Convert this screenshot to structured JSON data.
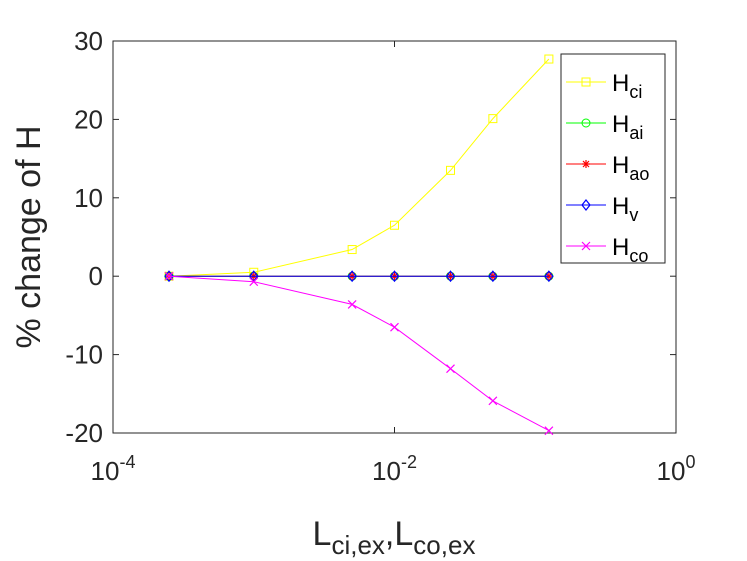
{
  "chart_data": {
    "type": "line",
    "xscale": "log",
    "xlim": [
      0.0001,
      1
    ],
    "ylim": [
      -20,
      30
    ],
    "xticks": [
      {
        "value": 0.0001,
        "base": "10",
        "exp": "-4"
      },
      {
        "value": 0.01,
        "base": "10",
        "exp": "-2"
      },
      {
        "value": 1,
        "base": "10",
        "exp": "0"
      }
    ],
    "yticks": [
      {
        "value": 30,
        "label": "30"
      },
      {
        "value": 20,
        "label": "20"
      },
      {
        "value": 10,
        "label": "10"
      },
      {
        "value": 0,
        "label": "0"
      },
      {
        "value": -10,
        "label": "-10"
      },
      {
        "value": -20,
        "label": "-20"
      }
    ],
    "ylabel": "% change of H",
    "xlabel": {
      "part1_base": "L",
      "part1_sub": "ci,ex",
      "sep": ",",
      "part2_base": "L",
      "part2_sub": "co,ex"
    },
    "grid": false,
    "legend_position": "top-right",
    "x": [
      0.00025,
      0.001,
      0.005,
      0.01,
      0.025,
      0.05,
      0.125
    ],
    "series": [
      {
        "name_base": "H",
        "name_sub": "ci",
        "color": "#FFFF00",
        "marker": "square",
        "values": [
          0,
          0.5,
          3.4,
          6.5,
          13.5,
          20.1,
          27.7
        ]
      },
      {
        "name_base": "H",
        "name_sub": "ai",
        "color": "#00FF00",
        "marker": "circle",
        "values": [
          0,
          0,
          0,
          0,
          0,
          0,
          0
        ]
      },
      {
        "name_base": "H",
        "name_sub": "ao",
        "color": "#FF0000",
        "marker": "asterisk",
        "values": [
          0,
          0,
          0,
          0,
          0,
          0,
          0
        ]
      },
      {
        "name_base": "H",
        "name_sub": "v",
        "color": "#0000FF",
        "marker": "diamond",
        "values": [
          0,
          0,
          0,
          0,
          0,
          0,
          0
        ]
      },
      {
        "name_base": "H",
        "name_sub": "co",
        "color": "#FF00FF",
        "marker": "x",
        "values": [
          0,
          -0.7,
          -3.6,
          -6.5,
          -11.8,
          -15.9,
          -19.7
        ]
      }
    ]
  }
}
